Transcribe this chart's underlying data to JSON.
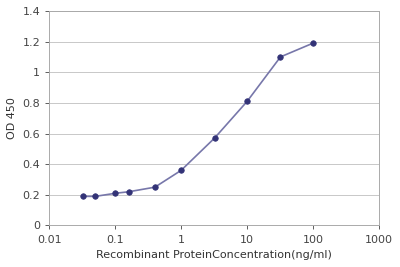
{
  "x_values": [
    0.032,
    0.05,
    0.1,
    0.16,
    0.4,
    1.0,
    3.2,
    10.0,
    32.0,
    100.0
  ],
  "y_values": [
    0.19,
    0.19,
    0.21,
    0.22,
    0.25,
    0.36,
    0.57,
    0.81,
    1.1,
    1.19
  ],
  "line_color": "#7777aa",
  "marker_color": "#333377",
  "marker_size": 4,
  "line_width": 1.2,
  "xlabel": "Recombinant ProteinConcentration(ng/ml)",
  "ylabel": "OD 450",
  "xlim": [
    0.01,
    1000
  ],
  "ylim": [
    0,
    1.4
  ],
  "yticks": [
    0,
    0.2,
    0.4,
    0.6,
    0.8,
    1.0,
    1.2,
    1.4
  ],
  "xtick_labels": [
    "0.01",
    "0.1",
    "1",
    "10",
    "100",
    "1000"
  ],
  "xtick_values": [
    0.01,
    0.1,
    1,
    10,
    100,
    1000
  ],
  "background_color": "#ffffff",
  "fig_background": "#ffffff",
  "grid_color": "#c8c8c8",
  "xlabel_fontsize": 8,
  "ylabel_fontsize": 8,
  "tick_fontsize": 8
}
